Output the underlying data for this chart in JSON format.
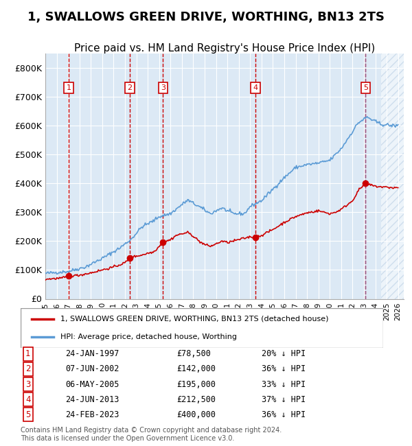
{
  "title": "1, SWALLOWS GREEN DRIVE, WORTHING, BN13 2TS",
  "subtitle": "Price paid vs. HM Land Registry's House Price Index (HPI)",
  "title_fontsize": 13,
  "subtitle_fontsize": 11,
  "ylabel": "",
  "ylim": [
    0,
    850000
  ],
  "yticks": [
    0,
    100000,
    200000,
    300000,
    400000,
    500000,
    600000,
    700000,
    800000
  ],
  "ytick_labels": [
    "£0",
    "£100K",
    "£200K",
    "£300K",
    "£400K",
    "£500K",
    "£600K",
    "£700K",
    "£800K"
  ],
  "xlim_start": 1995.0,
  "xlim_end": 2026.5,
  "background_color": "#dce9f5",
  "hatch_color": "#b0c8e0",
  "grid_color": "#ffffff",
  "hpi_color": "#5b9bd5",
  "price_color": "#cc0000",
  "sale_marker_color": "#cc0000",
  "vline_color": "#cc0000",
  "future_vline_color": "#8888cc",
  "legend_label_price": "1, SWALLOWS GREEN DRIVE, WORTHING, BN13 2TS (detached house)",
  "legend_label_hpi": "HPI: Average price, detached house, Worthing",
  "footer": "Contains HM Land Registry data © Crown copyright and database right 2024.\nThis data is licensed under the Open Government Licence v3.0.",
  "sales": [
    {
      "num": 1,
      "date": "24-JAN-1997",
      "year": 1997.07,
      "price": 78500,
      "pct": "20% ↓ HPI"
    },
    {
      "num": 2,
      "date": "07-JUN-2002",
      "year": 2002.43,
      "price": 142000,
      "pct": "36% ↓ HPI"
    },
    {
      "num": 3,
      "date": "06-MAY-2005",
      "year": 2005.34,
      "price": 195000,
      "pct": "33% ↓ HPI"
    },
    {
      "num": 4,
      "date": "24-JUN-2013",
      "year": 2013.48,
      "price": 212500,
      "pct": "37% ↓ HPI"
    },
    {
      "num": 5,
      "date": "24-FEB-2023",
      "year": 2023.15,
      "price": 400000,
      "pct": "36% ↓ HPI"
    }
  ]
}
